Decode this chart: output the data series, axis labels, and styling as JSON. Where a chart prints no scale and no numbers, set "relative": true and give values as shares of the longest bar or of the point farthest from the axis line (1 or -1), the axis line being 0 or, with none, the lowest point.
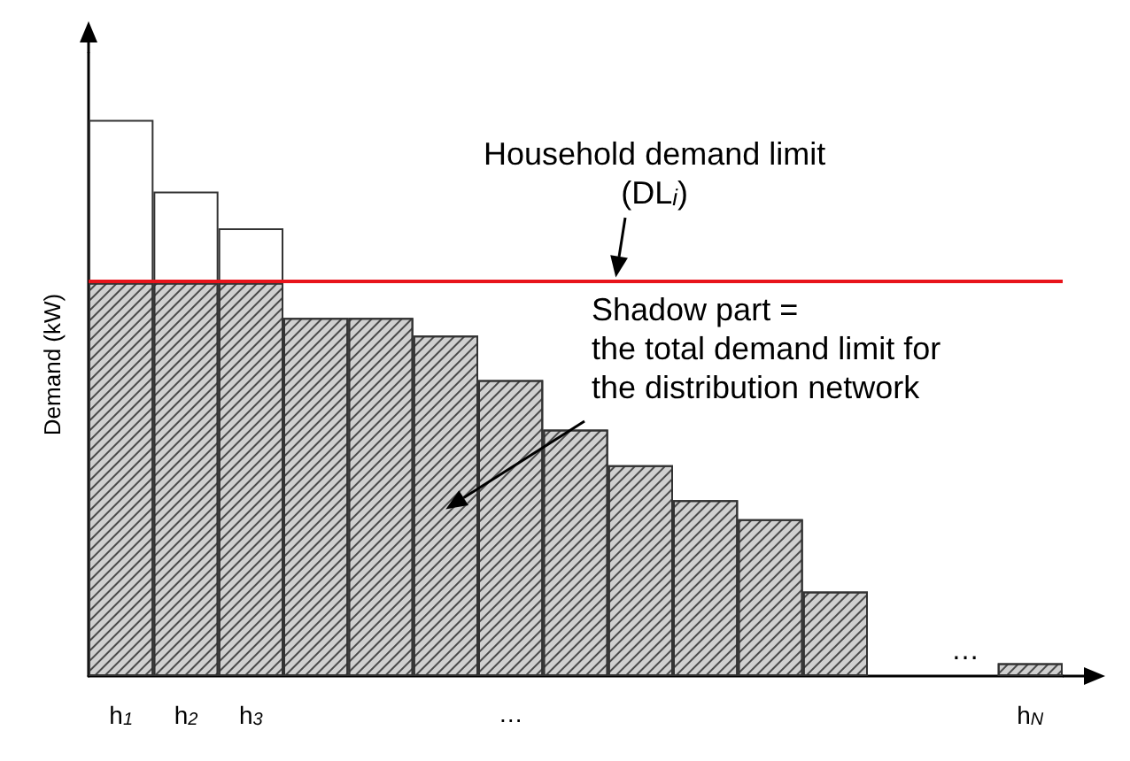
{
  "chart_data": {
    "type": "bar",
    "relative": true,
    "stacked": true,
    "ylabel": "Demand (kW)",
    "categories": [
      "h$_{1}$",
      "h$_{2}$",
      "h$_{3}$",
      null,
      null,
      null,
      "…",
      null,
      null,
      null,
      null,
      null,
      null,
      null,
      "h$_{N}$"
    ],
    "series": [
      {
        "color": "#d0d0d0",
        "values": [
          0.707,
          0.707,
          0.707,
          0.644,
          0.644,
          0.612,
          0.532,
          0.443,
          0.379,
          0.316,
          0.282,
          0.152,
          null,
          null,
          0.023
        ]
      },
      {
        "color": "#ffffff",
        "values": [
          0.293,
          0.164,
          0.098,
          null,
          null,
          null,
          null,
          null,
          null,
          null,
          null,
          null,
          null,
          null,
          null
        ]
      }
    ],
    "ref_lines": [
      {
        "axis": "y",
        "value": 0.707,
        "label": "Household demand limit\n(DL$_{i}$)",
        "color": "#e8141b"
      }
    ],
    "annotations": [
      "Shadow part =\nthe total demand limit for\nthe distribution network",
      "…"
    ],
    "tick_labels": "x",
    "grid": false
  }
}
